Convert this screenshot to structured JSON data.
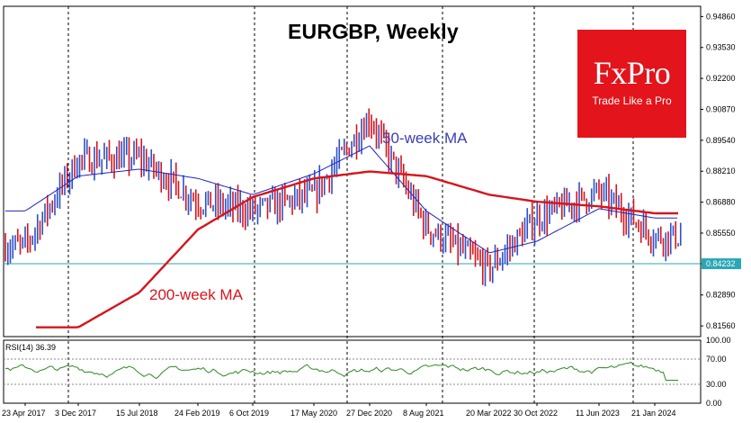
{
  "chart_data": {
    "type": "candlestick",
    "title": "EURGBP, Weekly",
    "brand": {
      "name": "FxPro",
      "tagline": "Trade Like a Pro",
      "color": "#e3141b"
    },
    "y_ticks": [
      "0.94860",
      "0.93530",
      "0.92200",
      "0.90870",
      "0.89540",
      "0.88210",
      "0.86880",
      "0.85550",
      "0.84232",
      "0.82890",
      "0.81560"
    ],
    "y_tick_values": [
      0.9486,
      0.9353,
      0.922,
      0.9087,
      0.8954,
      0.8821,
      0.8688,
      0.8555,
      0.84232,
      0.8289,
      0.8156
    ],
    "ylim": [
      0.811,
      0.953
    ],
    "current_price": "0.84232",
    "x_ticks": [
      "23 Apr 2017",
      "3 Dec 2017",
      "15 Jul 2018",
      "24 Feb 2019",
      "6 Oct 2019",
      "17 May 2020",
      "27 Dec 2020",
      "8 Aug 2021",
      "20 Mar 2022",
      "30 Oct 2022",
      "11 Jun 2023",
      "21 Jan 2024"
    ],
    "period": "weekly",
    "series": [
      {
        "name": "50-week MA",
        "color": "#1f24c8",
        "x": [
          "23 Apr 2017",
          "3 Dec 2017",
          "15 Jul 2018",
          "24 Feb 2019",
          "6 Oct 2019",
          "17 May 2020",
          "27 Dec 2020",
          "8 Aug 2021",
          "20 Mar 2022",
          "30 Oct 2022",
          "11 Jun 2023",
          "21 Jan 2024"
        ],
        "y": [
          0.865,
          0.88,
          0.883,
          0.879,
          0.872,
          0.881,
          0.893,
          0.865,
          0.847,
          0.852,
          0.866,
          0.862
        ]
      },
      {
        "name": "200-week MA",
        "color": "#d6151c",
        "x": [
          "3 Dec 2017",
          "15 Jul 2018",
          "24 Feb 2019",
          "6 Oct 2019",
          "17 May 2020",
          "27 Dec 2020",
          "8 Aug 2021",
          "20 Mar 2022",
          "30 Oct 2022",
          "11 Jun 2023",
          "21 Jan 2024"
        ],
        "y": [
          0.815,
          0.83,
          0.857,
          0.871,
          0.879,
          0.882,
          0.88,
          0.872,
          0.869,
          0.867,
          0.864
        ]
      }
    ],
    "price_path": {
      "x": [
        "23 Apr 2017",
        "3 Dec 2017",
        "15 Jul 2018",
        "24 Feb 2019",
        "6 Oct 2019",
        "17 May 2020",
        "27 Dec 2020",
        "8 Aug 2021",
        "20 Mar 2022",
        "30 Oct 2022",
        "11 Jun 2023",
        "21 Jan 2024"
      ],
      "y": [
        0.85,
        0.887,
        0.888,
        0.869,
        0.865,
        0.872,
        0.905,
        0.858,
        0.84,
        0.862,
        0.873,
        0.854
      ]
    },
    "rsi": {
      "label": "RSI(14) 36.39",
      "value": 36.39,
      "levels": [
        30,
        70
      ],
      "ticks": [
        "100.00",
        "70.00",
        "30.00",
        "0.00"
      ],
      "range": [
        0,
        100
      ]
    }
  }
}
